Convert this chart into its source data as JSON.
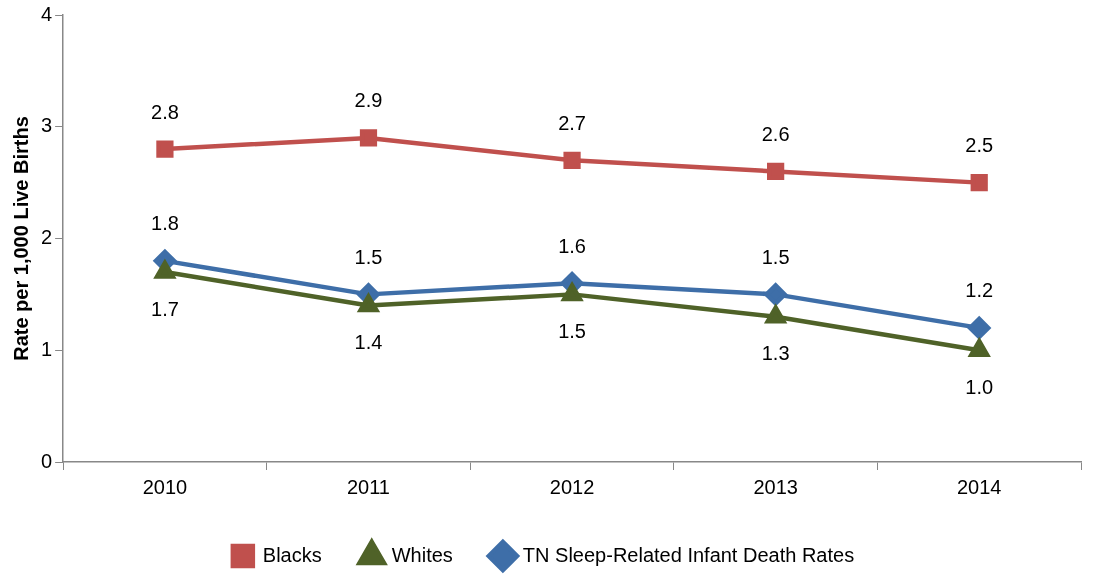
{
  "chart_data": {
    "type": "line",
    "ylabel": "Rate per 1,000 Live Births",
    "categories": [
      "2010",
      "2011",
      "2012",
      "2013",
      "2014"
    ],
    "series": [
      {
        "name": "Blacks",
        "color": "#c0504d",
        "marker": "square",
        "values": [
          2.8,
          2.9,
          2.7,
          2.6,
          2.5
        ],
        "value_labels": [
          "2.8",
          "2.9",
          "2.7",
          "2.6",
          "2.5"
        ]
      },
      {
        "name": "Whites",
        "color": "#4f6228",
        "marker": "triangle",
        "values": [
          1.7,
          1.4,
          1.5,
          1.3,
          1.0
        ],
        "value_labels": [
          "1.7",
          "1.4",
          "1.5",
          "1.3",
          "1.0"
        ]
      },
      {
        "name": "TN Sleep-Related Infant Death Rates",
        "color": "#3e6ea8",
        "marker": "diamond",
        "values": [
          1.8,
          1.5,
          1.6,
          1.5,
          1.2
        ],
        "value_labels": [
          "1.8",
          "1.5",
          "1.6",
          "1.5",
          "1.2"
        ]
      }
    ],
    "ylim": [
      0,
      4
    ],
    "yticks": [
      0,
      1,
      2,
      3,
      4
    ],
    "grid": false,
    "legend": "bottom",
    "line_style": "solid"
  }
}
